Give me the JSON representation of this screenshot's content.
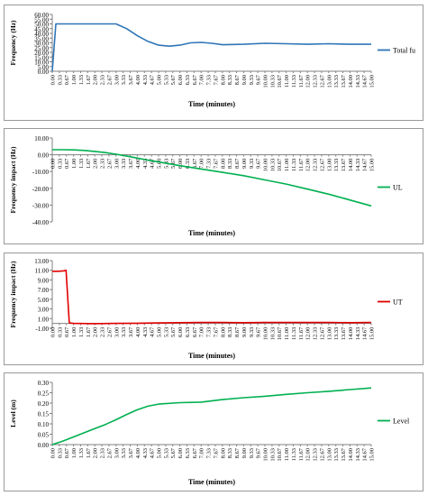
{
  "chart_data": [
    {
      "type": "line",
      "xlabel": "Time (minutes)",
      "ylabel": "Frequency (Hz)",
      "ylim": [
        0,
        60
      ],
      "yticks": [
        "0.00",
        "5.00",
        "10.00",
        "15.00",
        "20.00",
        "25.00",
        "30.00",
        "35.00",
        "40.00",
        "45.00",
        "50.00",
        "55.00",
        "60.00"
      ],
      "categories": [
        "0.00",
        "0.33",
        "0.67",
        "1.00",
        "1.33",
        "1.67",
        "2.00",
        "2.33",
        "2.67",
        "3.00",
        "3.33",
        "3.67",
        "4.00",
        "4.33",
        "4.67",
        "5.00",
        "5.33",
        "5.67",
        "6.00",
        "6.33",
        "6.67",
        "7.00",
        "7.33",
        "7.67",
        "8.00",
        "8.33",
        "8.67",
        "9.00",
        "9.33",
        "9.67",
        "10.00",
        "10.33",
        "10.67",
        "11.00",
        "11.33",
        "11.67",
        "12.00",
        "12.33",
        "12.67",
        "13.00",
        "13.33",
        "13.67",
        "14.00",
        "14.33",
        "14.67",
        "15.00"
      ],
      "series": [
        {
          "name": "Total fu",
          "color": "#2e75b6",
          "x": [
            0,
            0.17,
            0.3,
            3.0,
            3.5,
            4.0,
            4.5,
            5.0,
            5.5,
            6.0,
            6.5,
            7.0,
            7.5,
            8.0,
            9.0,
            10.0,
            11.0,
            12.0,
            13.0,
            14.0,
            15.0
          ],
          "values": [
            0,
            50,
            50,
            50,
            45,
            37.5,
            31.5,
            27.5,
            26.5,
            27.5,
            30,
            30.5,
            29.5,
            28,
            28.5,
            29.5,
            29,
            28.5,
            29,
            28.5,
            28.5
          ]
        }
      ],
      "legend": "right"
    },
    {
      "type": "line",
      "xlabel": "Time  (minutes)",
      "ylabel": "Frequency  impact  (Hz)",
      "ylim": [
        -40,
        10
      ],
      "yticks": [
        "-40.00",
        "-30.00",
        "-20.00",
        "-10.00",
        "0.00",
        "10.00"
      ],
      "categories": [
        "0.00",
        "0.33",
        "0.67",
        "1.00",
        "1.33",
        "1.67",
        "2.00",
        "2.33",
        "2.67",
        "3.00",
        "3.33",
        "3.67",
        "4.00",
        "4.33",
        "4.67",
        "5.00",
        "5.33",
        "5.67",
        "6.00",
        "6.33",
        "6.67",
        "7.00",
        "7.33",
        "7.67",
        "8.00",
        "8.33",
        "8.67",
        "9.00",
        "9.33",
        "9.67",
        "10.00",
        "10.33",
        "10.67",
        "11.00",
        "11.33",
        "11.67",
        "12.00",
        "12.33",
        "12.67",
        "13.00",
        "13.33",
        "13.67",
        "14.00",
        "14.33",
        "14.67",
        "15.00"
      ],
      "series": [
        {
          "name": "UL",
          "color": "#00b050",
          "x": [
            0,
            0.5,
            1,
            1.5,
            2,
            2.5,
            3,
            3.5,
            4,
            4.5,
            5,
            6,
            7,
            8,
            9,
            10,
            11,
            12,
            13,
            14,
            15
          ],
          "values": [
            3,
            3,
            2.9,
            2.6,
            2,
            1.3,
            0.3,
            -0.8,
            -2,
            -3.2,
            -4.3,
            -6.5,
            -8.5,
            -10.5,
            -12.5,
            -15,
            -17.5,
            -20.5,
            -23.5,
            -27,
            -30.5
          ]
        }
      ],
      "legend": "right"
    },
    {
      "type": "line",
      "xlabel": "Time (minutes)",
      "ylabel": "Frequency  impact  (Hz)",
      "ylim": [
        -1,
        13
      ],
      "yticks": [
        "-1.00",
        "1.00",
        "3.00",
        "5.00",
        "7.00",
        "9.00",
        "11.00",
        "13.00"
      ],
      "categories": [
        "0.00",
        "0.33",
        "0.67",
        "1.00",
        "1.33",
        "1.67",
        "2.00",
        "2.33",
        "2.67",
        "3.00",
        "3.33",
        "3.67",
        "4.00",
        "4.33",
        "4.67",
        "5.00",
        "5.33",
        "5.67",
        "6.00",
        "6.33",
        "6.67",
        "7.00",
        "7.33",
        "7.67",
        "8.00",
        "8.33",
        "8.67",
        "9.00",
        "9.33",
        "9.67",
        "10.00",
        "10.33",
        "10.67",
        "11.00",
        "11.33",
        "11.67",
        "12.00",
        "12.33",
        "12.67",
        "13.00",
        "13.33",
        "13.67",
        "14.00",
        "14.33",
        "14.67",
        "15.00"
      ],
      "series": [
        {
          "name": "UT",
          "color": "#e00000",
          "x": [
            0,
            0.3,
            0.55,
            0.65,
            0.8,
            1.0,
            2.0,
            3.0,
            4.0,
            5.0,
            6.0,
            7.0,
            8.0,
            9.0,
            10.0,
            11.0,
            12.0,
            13.0,
            14.0,
            15.0
          ],
          "values": [
            10.8,
            10.8,
            10.9,
            11.0,
            0.1,
            0.0,
            -0.05,
            0.0,
            0.05,
            0.1,
            0.15,
            0.2,
            0.2,
            0.15,
            0.2,
            0.2,
            0.2,
            0.2,
            0.15,
            0.2
          ]
        }
      ],
      "legend": "right"
    },
    {
      "type": "line",
      "xlabel": "Time (minutes)",
      "ylabel": "Level (m)",
      "ylim": [
        0,
        0.3
      ],
      "yticks": [
        "0.00",
        "0.05",
        "0.10",
        "0.15",
        "0.20",
        "0.25",
        "0.30"
      ],
      "categories": [
        "0.00",
        "0.33",
        "0.67",
        "1.00",
        "1.33",
        "1.67",
        "2.00",
        "2.33",
        "2.67",
        "3.00",
        "3.33",
        "3.67",
        "4.00",
        "4.33",
        "4.67",
        "5.00",
        "5.33",
        "5.67",
        "6.00",
        "6.33",
        "6.67",
        "7.00",
        "7.33",
        "7.67",
        "8.00",
        "8.33",
        "8.67",
        "9.00",
        "9.33",
        "9.67",
        "10.00",
        "10.33",
        "10.67",
        "11.00",
        "11.33",
        "11.67",
        "12.00",
        "12.33",
        "12.67",
        "13.00",
        "13.33",
        "13.67",
        "14.00",
        "14.33",
        "14.67",
        "15.00"
      ],
      "series": [
        {
          "name": "Level",
          "color": "#00b050",
          "x": [
            0,
            0.5,
            1,
            1.5,
            2,
            2.5,
            3,
            3.5,
            4,
            4.5,
            5,
            6,
            7,
            8,
            9,
            10,
            11,
            12,
            13,
            14,
            15
          ],
          "values": [
            0,
            0.017,
            0.037,
            0.057,
            0.077,
            0.097,
            0.12,
            0.145,
            0.168,
            0.185,
            0.195,
            0.202,
            0.205,
            0.217,
            0.226,
            0.233,
            0.242,
            0.25,
            0.257,
            0.265,
            0.273
          ]
        }
      ],
      "legend": "right"
    }
  ]
}
